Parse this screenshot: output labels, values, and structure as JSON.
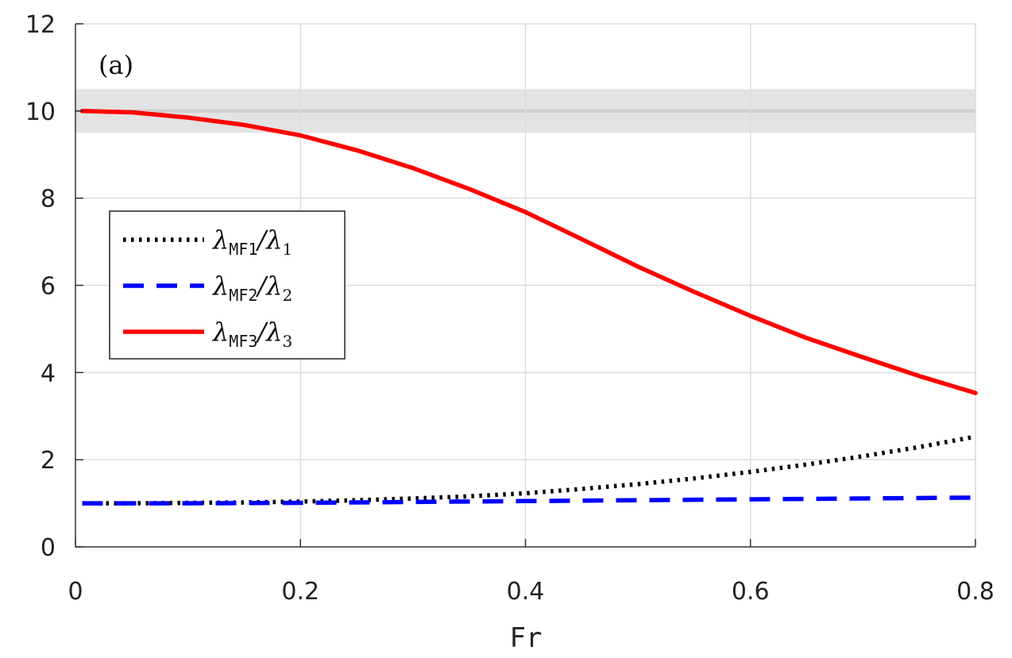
{
  "chart_data": {
    "type": "line",
    "panel_label": "(a)",
    "xlabel": "Fr",
    "ylabel": "",
    "xlim": [
      0,
      0.8
    ],
    "ylim": [
      0,
      12
    ],
    "xticks": [
      "0",
      "0.2",
      "0.4",
      "0.6",
      "0.8"
    ],
    "yticks": [
      "0",
      "2",
      "4",
      "6",
      "8",
      "10",
      "12"
    ],
    "grid": true,
    "legend_position": "middle-left",
    "reference_band": {
      "center": 10,
      "lower": 9.5,
      "upper": 10.5
    },
    "series": [
      {
        "key": "mf1",
        "legend_main": "λ",
        "legend_sub": "MF1",
        "legend_den": "/λ",
        "legend_den_sub": "1",
        "style": "dotted",
        "color": "#000000",
        "x": [
          0.006,
          0.05,
          0.1,
          0.15,
          0.2,
          0.25,
          0.3,
          0.35,
          0.4,
          0.45,
          0.5,
          0.55,
          0.6,
          0.65,
          0.7,
          0.75,
          0.8
        ],
        "y": [
          1.0,
          1.0,
          1.01,
          1.02,
          1.04,
          1.07,
          1.11,
          1.16,
          1.23,
          1.33,
          1.44,
          1.57,
          1.72,
          1.89,
          2.08,
          2.29,
          2.53
        ]
      },
      {
        "key": "mf2",
        "legend_main": "λ",
        "legend_sub": "MF2",
        "legend_den": "/λ",
        "legend_den_sub": "2",
        "style": "dashed",
        "color": "#0000ff",
        "x": [
          0.006,
          0.1,
          0.2,
          0.3,
          0.4,
          0.5,
          0.6,
          0.7,
          0.8
        ],
        "y": [
          1.0,
          1.0,
          1.01,
          1.03,
          1.05,
          1.07,
          1.09,
          1.11,
          1.13
        ]
      },
      {
        "key": "mf3",
        "legend_main": "λ",
        "legend_sub": "MF3",
        "legend_den": "/λ",
        "legend_den_sub": "3",
        "style": "solid",
        "color": "#ff0000",
        "x": [
          0.006,
          0.05,
          0.1,
          0.15,
          0.2,
          0.25,
          0.3,
          0.35,
          0.4,
          0.45,
          0.5,
          0.55,
          0.6,
          0.65,
          0.7,
          0.75,
          0.8
        ],
        "y": [
          10.0,
          9.97,
          9.85,
          9.68,
          9.44,
          9.1,
          8.69,
          8.21,
          7.68,
          7.06,
          6.43,
          5.85,
          5.3,
          4.79,
          4.35,
          3.92,
          3.53
        ]
      }
    ]
  }
}
